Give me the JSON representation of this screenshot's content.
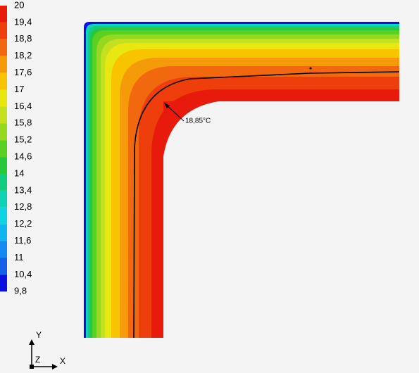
{
  "legend": {
    "labels": [
      "20",
      "19,4",
      "18,8",
      "18,2",
      "17,6",
      "17",
      "16,4",
      "15,8",
      "15,2",
      "14,6",
      "14",
      "13,4",
      "12,8",
      "12,2",
      "11,6",
      "11",
      "10,4",
      "9,8"
    ],
    "colors": [
      "#e81a0c",
      "#ee3e0c",
      "#f2680e",
      "#f59a08",
      "#f8c400",
      "#e8e810",
      "#c4e020",
      "#96d820",
      "#5cd020",
      "#28c83c",
      "#14cc80",
      "#10d2b4",
      "#10d4e4",
      "#10b4f0",
      "#148af0",
      "#1460e8",
      "#0a10e0"
    ]
  },
  "annotation": "18,85°C",
  "axes": {
    "y": "Y",
    "z": "Z",
    "x": "X"
  }
}
